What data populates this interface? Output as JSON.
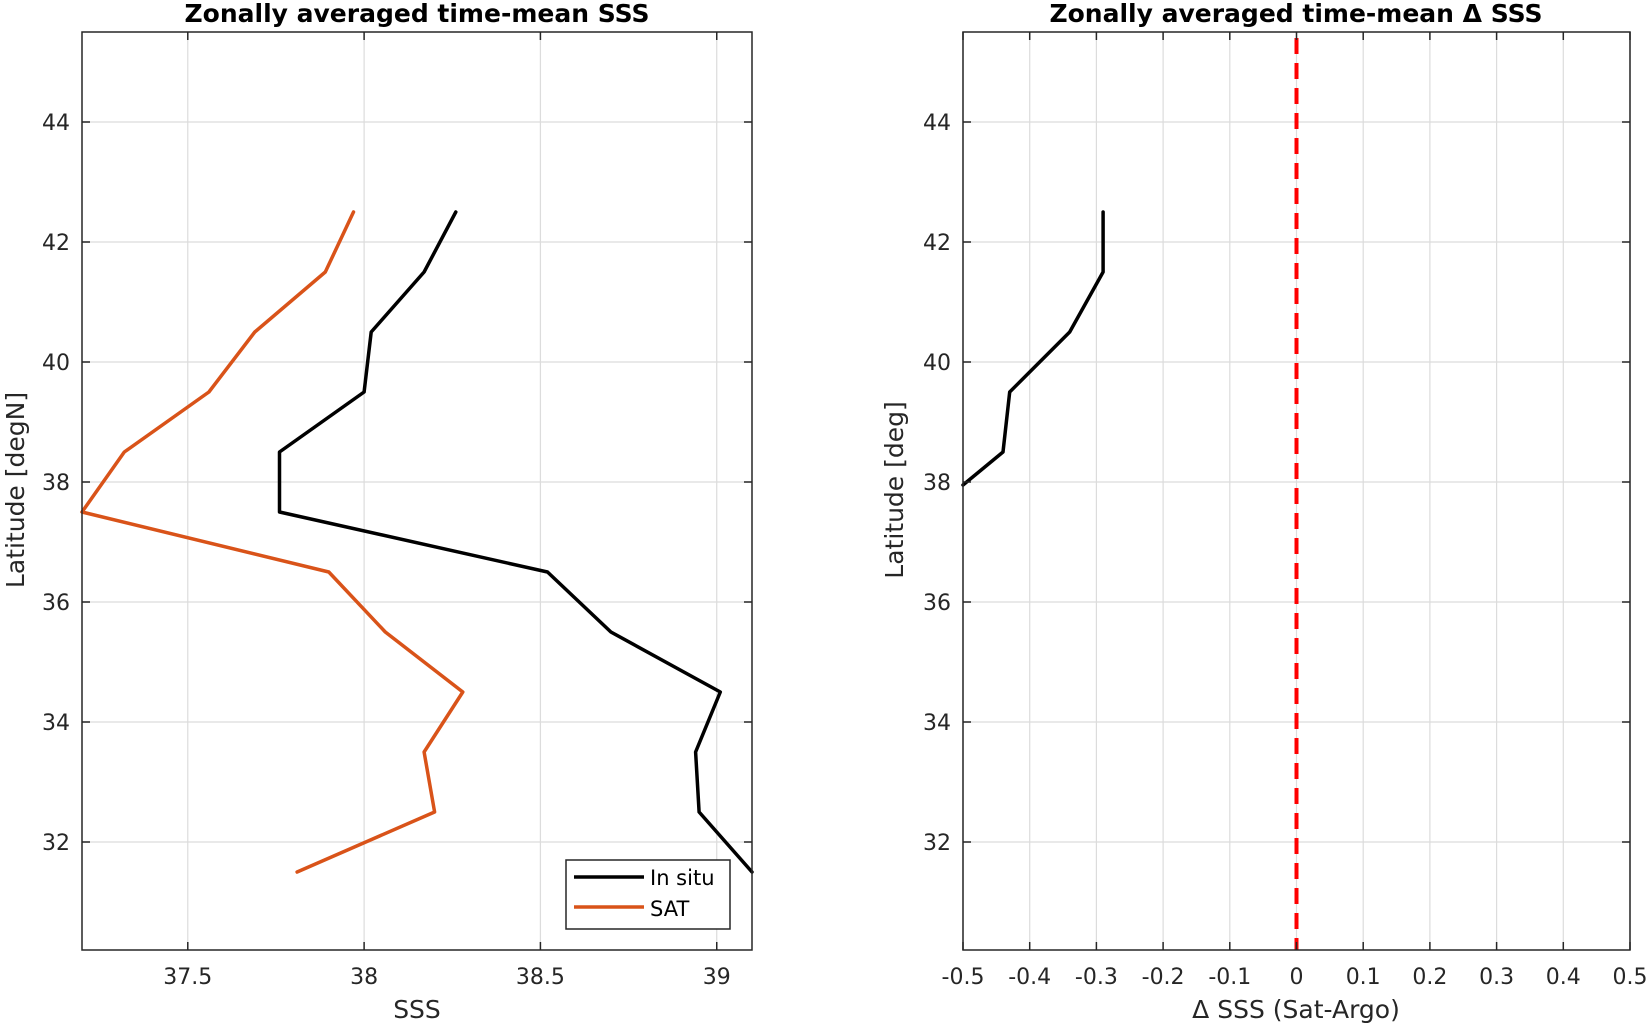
{
  "chart_data": [
    {
      "type": "line",
      "title": "Zonally averaged time-mean SSS",
      "xlabel": "SSS",
      "ylabel": "Latitude [degN]",
      "xlim": [
        37.2,
        39.1
      ],
      "ylim": [
        30.2,
        45.5
      ],
      "xticks": [
        37.5,
        38,
        38.5,
        39
      ],
      "xtick_labels": [
        "37.5",
        "38",
        "38.5",
        "39"
      ],
      "yticks": [
        32,
        34,
        36,
        38,
        40,
        42,
        44
      ],
      "ytick_labels": [
        "32",
        "34",
        "36",
        "38",
        "40",
        "42",
        "44"
      ],
      "grid": true,
      "legend_position": "bottom-right",
      "series": [
        {
          "name": "In situ",
          "color": "#000000",
          "x": [
            38.26,
            38.17,
            38.02,
            38.0,
            37.76,
            37.76,
            38.52,
            38.7,
            39.01,
            38.94,
            38.95,
            39.1
          ],
          "y": [
            42.5,
            41.5,
            40.5,
            39.5,
            38.5,
            37.5,
            36.5,
            35.5,
            34.5,
            33.5,
            32.5,
            31.5
          ]
        },
        {
          "name": "SAT",
          "color": "#D95319",
          "x": [
            37.97,
            37.89,
            37.69,
            37.56,
            37.32,
            37.2,
            37.9,
            38.06,
            38.28,
            38.17,
            38.2,
            37.81
          ],
          "y": [
            42.5,
            41.5,
            40.5,
            39.5,
            38.5,
            37.5,
            36.5,
            35.5,
            34.5,
            33.5,
            32.5,
            31.5
          ]
        }
      ]
    },
    {
      "type": "line",
      "title": "Zonally averaged time-mean Δ SSS",
      "xlabel": "Δ SSS (Sat-Argo)",
      "ylabel": "Latitude [deg]",
      "xlim": [
        -0.5,
        0.5
      ],
      "ylim": [
        30.2,
        45.5
      ],
      "xticks": [
        -0.5,
        -0.4,
        -0.3,
        -0.2,
        -0.1,
        0,
        0.1,
        0.2,
        0.3,
        0.4,
        0.5
      ],
      "xtick_labels": [
        "-0.5",
        "-0.4",
        "-0.3",
        "-0.2",
        "-0.1",
        "0",
        "0.1",
        "0.2",
        "0.3",
        "0.4",
        "0.5"
      ],
      "yticks": [
        32,
        34,
        36,
        38,
        40,
        42,
        44
      ],
      "ytick_labels": [
        "32",
        "34",
        "36",
        "38",
        "40",
        "42",
        "44"
      ],
      "grid": true,
      "series": [
        {
          "color": "#000000",
          "x": [
            -0.29,
            -0.29,
            -0.34,
            -0.43,
            -0.44,
            -0.5
          ],
          "y": [
            42.5,
            41.5,
            40.5,
            39.5,
            38.5,
            37.95
          ]
        }
      ],
      "reference_line": {
        "x": 0,
        "color": "#ff0000",
        "style": "dashed"
      }
    }
  ]
}
